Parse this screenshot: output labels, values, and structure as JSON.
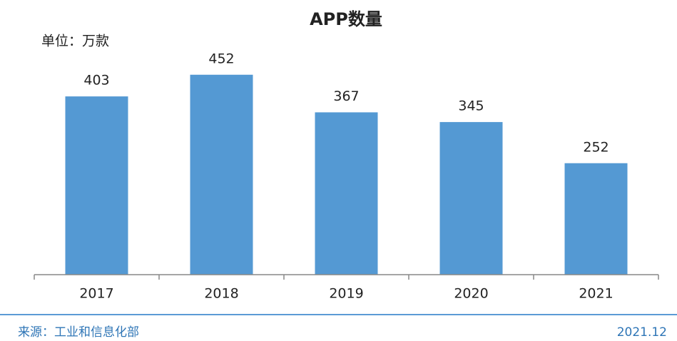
{
  "chart_data": {
    "type": "bar",
    "title": "APP数量",
    "subtitle": "单位：万款",
    "categories": [
      "2017",
      "2018",
      "2019",
      "2020",
      "2021"
    ],
    "values": [
      403,
      452,
      367,
      345,
      252
    ],
    "color": "#5499d3",
    "ylim": [
      0,
      500
    ],
    "grid": false,
    "source": "来源：工业和信息化部",
    "date": "2021.12"
  }
}
